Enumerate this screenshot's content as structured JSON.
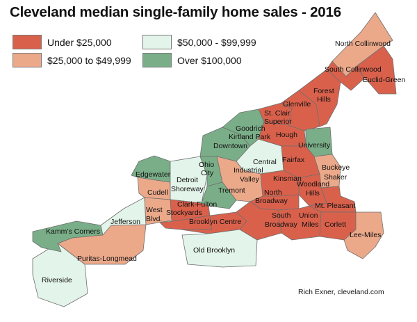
{
  "title": "Cleveland median single-family home sales - 2016",
  "legend": [
    {
      "label": "Under $25,000",
      "color": "#d9614c"
    },
    {
      "label": "$25,000 to $49,999",
      "color": "#eba98a"
    },
    {
      "label": "$50,000 - $99,999",
      "color": "#e3f4ea"
    },
    {
      "label": "Over $100,000",
      "color": "#7aae88"
    }
  ],
  "neighborhoods": [
    {
      "name": "North Collinwood",
      "category": 1
    },
    {
      "name": "South Collinwood",
      "category": 0
    },
    {
      "name": "Euclid-Green",
      "category": 0
    },
    {
      "name": "Forest Hills",
      "category": 0
    },
    {
      "name": "Glenville",
      "category": 0
    },
    {
      "name": "St. Clair Superior",
      "category": 0
    },
    {
      "name": "Goodrich Kirtland Park",
      "category": 3
    },
    {
      "name": "Hough",
      "category": 0
    },
    {
      "name": "Downtown",
      "category": 3
    },
    {
      "name": "University",
      "category": 3
    },
    {
      "name": "Central",
      "category": 2
    },
    {
      "name": "Fairfax",
      "category": 0
    },
    {
      "name": "Edgewater",
      "category": 3
    },
    {
      "name": "Ohio City",
      "category": 3
    },
    {
      "name": "Detroit Shoreway",
      "category": 2
    },
    {
      "name": "Industrial Valley",
      "category": 1
    },
    {
      "name": "Buckeye Shaker",
      "category": 1
    },
    {
      "name": "Kinsman",
      "category": 0
    },
    {
      "name": "Woodland Hills",
      "category": 0
    },
    {
      "name": "Cudell",
      "category": 1
    },
    {
      "name": "Tremont",
      "category": 3
    },
    {
      "name": "North Broadway",
      "category": 0
    },
    {
      "name": "Mt. Pleasant",
      "category": 0
    },
    {
      "name": "West Blvd.",
      "category": 1
    },
    {
      "name": "Clark-Fulton",
      "category": 0
    },
    {
      "name": "Stockyards",
      "category": 0
    },
    {
      "name": "Jefferson",
      "category": 2
    },
    {
      "name": "Brooklyn Centre",
      "category": 0
    },
    {
      "name": "South Broadway",
      "category": 0
    },
    {
      "name": "Union Miles",
      "category": 0
    },
    {
      "name": "Corlett",
      "category": 0
    },
    {
      "name": "Lee-Miles",
      "category": 1
    },
    {
      "name": "Kamm's Corners",
      "category": 3
    },
    {
      "name": "Old Brooklyn",
      "category": 2
    },
    {
      "name": "Puritas-Longmead",
      "category": 1
    },
    {
      "name": "Riverside",
      "category": 2
    }
  ],
  "labels": {
    "north_collinwood": "North Collinwood",
    "south_collinwood": "South Collinwood",
    "euclid_green": "Euclid-Green",
    "forest_1": "Forest",
    "forest_2": "Hills",
    "glenville": "Glenville",
    "stclair_1": "St. Clair",
    "stclair_2": "Superior",
    "goodrich_1": "Goodrich",
    "goodrich_2": "Kirtland Park",
    "hough": "Hough",
    "downtown": "Downtown",
    "university": "University",
    "central": "Central",
    "fairfax": "Fairfax",
    "edgewater": "Edgewater",
    "ohio_1": "Ohio",
    "ohio_2": "City",
    "detroit_1": "Detroit",
    "detroit_2": "Shoreway",
    "industrial_1": "Industrial",
    "industrial_2": "Valley",
    "buckeye_1": "Buckeye",
    "buckeye_2": "Shaker",
    "kinsman": "Kinsman",
    "woodland_1": "Woodland",
    "woodland_2": "Hills",
    "cudell": "Cudell",
    "tremont": "Tremont",
    "nbroadway_1": "North",
    "nbroadway_2": "Broadway",
    "mtpleasant": "Mt. Pleasant",
    "westblvd_1": "West",
    "westblvd_2": "Blvd.",
    "clarkfulton": "Clark-Fulton",
    "stockyards": "Stockyards",
    "jefferson": "Jefferson",
    "brooklyncentre": "Brooklyn Centre",
    "sbroadway_1": "South",
    "sbroadway_2": "Broadway",
    "union_1": "Union",
    "union_2": "Miles",
    "corlett": "Corlett",
    "leemiles": "Lee-Miles",
    "kamms": "Kamm’s Corners",
    "oldbrooklyn": "Old Brooklyn",
    "puritas": "Puritas-Longmead",
    "riverside": "Riverside"
  },
  "credit": "Rich Exner, cleveland.com"
}
